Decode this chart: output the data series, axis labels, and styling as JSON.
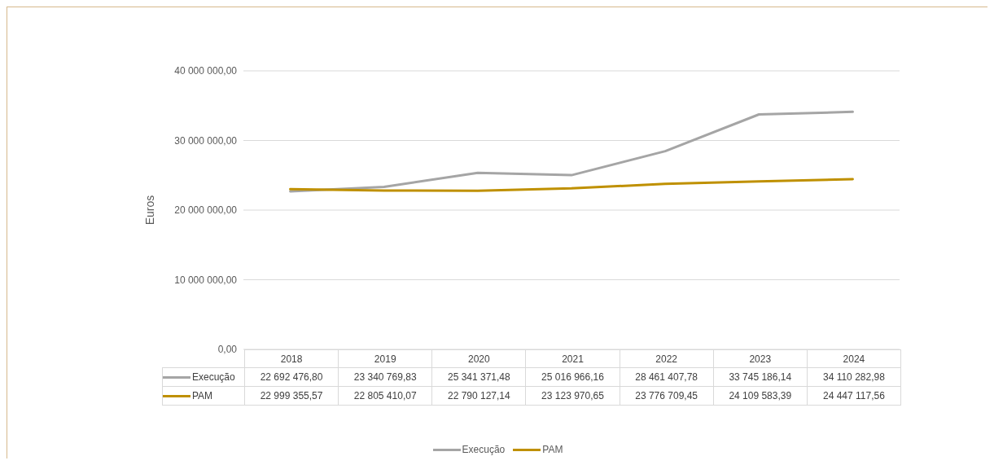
{
  "chart_data": {
    "type": "line",
    "ylabel": "Euros",
    "categories": [
      "2018",
      "2019",
      "2020",
      "2021",
      "2022",
      "2023",
      "2024"
    ],
    "series": [
      {
        "name": "Execução",
        "color": "#a5a5a5",
        "values": [
          22692476.8,
          23340769.83,
          25341371.48,
          25016966.16,
          28461407.78,
          33745186.14,
          34110282.98
        ],
        "value_labels": [
          "22 692 476,80",
          "23 340 769,83",
          "25 341 371,48",
          "25 016 966,16",
          "28 461 407,78",
          "33 745 186,14",
          "34 110 282,98"
        ]
      },
      {
        "name": "PAM",
        "color": "#bf9000",
        "values": [
          22999355.57,
          22805410.07,
          22790127.14,
          23123970.65,
          23776709.45,
          24109583.39,
          24447117.56
        ],
        "value_labels": [
          "22 999 355,57",
          "22 805 410,07",
          "22 790 127,14",
          "23 123 970,65",
          "23 776 709,45",
          "24 109 583,39",
          "24 447 117,56"
        ]
      }
    ],
    "ylim": [
      0,
      40000000
    ],
    "yticks": [
      {
        "value": 0,
        "label": "0,00"
      },
      {
        "value": 10000000,
        "label": "10 000 000,00"
      },
      {
        "value": 20000000,
        "label": "20 000 000,00"
      },
      {
        "value": 30000000,
        "label": "30 000 000,00"
      },
      {
        "value": 40000000,
        "label": "40 000 000,00"
      }
    ],
    "grid": "y",
    "legend": "bottom",
    "marker": "none",
    "line_style": "solid"
  }
}
